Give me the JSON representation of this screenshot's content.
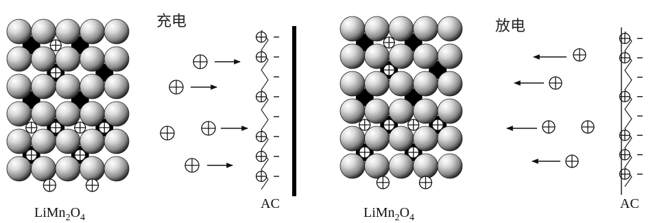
{
  "left_panel": {
    "process_label": "充电",
    "material_label": {
      "base": "LiMn",
      "sub1": "2",
      "mid": "O",
      "sub2": "4"
    },
    "electrode_label": "AC",
    "direction": "toward-electrode"
  },
  "right_panel": {
    "process_label": "放电",
    "material_label": {
      "base": "LiMn",
      "sub1": "2",
      "mid": "O",
      "sub2": "4"
    },
    "electrode_label": "AC",
    "direction": "away-from-electrode"
  },
  "symbols": {
    "cation": "⊕",
    "anion": "−"
  },
  "colors": {
    "sphere_light": "#ffffff",
    "sphere_mid": "#a8a8a8",
    "sphere_dark": "#2a2a2a",
    "interstitial": "#000000",
    "line": "#111111"
  }
}
